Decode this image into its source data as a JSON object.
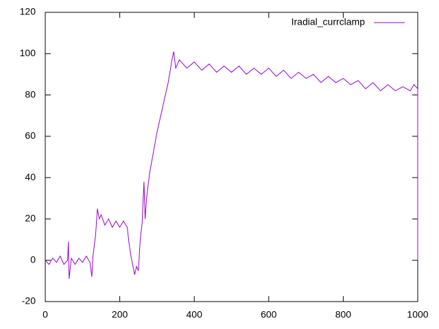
{
  "chart_data": {
    "type": "line",
    "x": [
      0,
      10,
      20,
      30,
      40,
      50,
      60,
      62,
      64,
      70,
      80,
      90,
      100,
      110,
      120,
      125,
      128,
      135,
      140,
      145,
      150,
      160,
      170,
      180,
      190,
      200,
      210,
      220,
      225,
      230,
      240,
      245,
      250,
      255,
      260,
      265,
      268,
      272,
      280,
      290,
      300,
      310,
      320,
      330,
      340,
      345,
      350,
      360,
      380,
      400,
      420,
      440,
      460,
      480,
      500,
      520,
      540,
      560,
      580,
      600,
      620,
      640,
      660,
      680,
      700,
      720,
      740,
      760,
      780,
      800,
      820,
      840,
      860,
      880,
      900,
      920,
      940,
      960,
      980,
      990,
      1000,
      1000
    ],
    "series": [
      {
        "name": "Iradial_currclamp",
        "color": "#9400d3",
        "values": [
          0,
          -2,
          1,
          -1,
          2,
          -2,
          0,
          9,
          -9,
          1,
          -2,
          1,
          -1,
          2,
          -1,
          -8,
          2,
          12,
          25,
          20,
          22,
          17,
          20,
          16,
          19,
          16,
          19,
          16,
          8,
          2,
          -7,
          -3,
          -5,
          10,
          18,
          38,
          20,
          30,
          42,
          52,
          62,
          70,
          78,
          86,
          97,
          101,
          93,
          97,
          93,
          96,
          92,
          95,
          91,
          94,
          91,
          94,
          90,
          93,
          90,
          93,
          89,
          92,
          88,
          91,
          88,
          90,
          86,
          89,
          86,
          88,
          85,
          87,
          83,
          86,
          82,
          85,
          82,
          84,
          82,
          85,
          83,
          0
        ]
      }
    ],
    "xlim": [
      0,
      1000
    ],
    "xticks": [
      0,
      200,
      400,
      600,
      800,
      1000
    ],
    "ylim": [
      -20,
      120
    ],
    "yticks": [
      -20,
      0,
      20,
      40,
      60,
      80,
      100,
      120
    ],
    "legend": "upper right"
  }
}
